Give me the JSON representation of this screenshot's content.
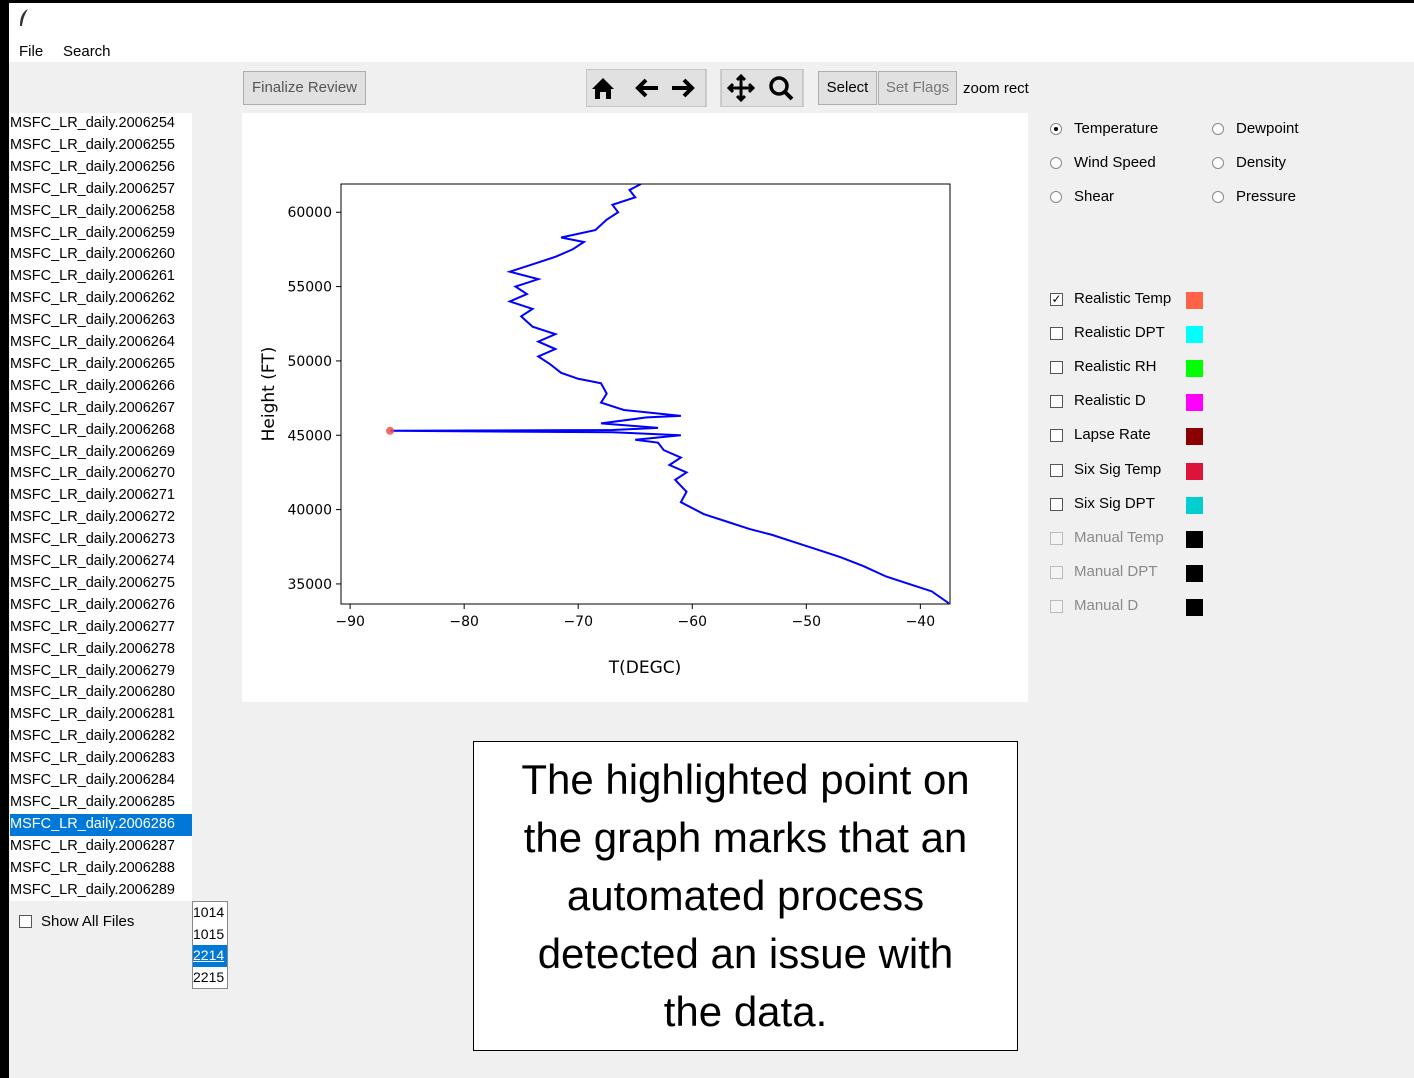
{
  "window": {
    "menu": [
      "File",
      "Search"
    ]
  },
  "toolbar": {
    "finalize": "Finalize Review",
    "select": "Select",
    "set_flags": "Set Flags",
    "mode": "zoom rect"
  },
  "file_list": {
    "items": [
      "MSFC_LR_daily.2006254",
      "MSFC_LR_daily.2006255",
      "MSFC_LR_daily.2006256",
      "MSFC_LR_daily.2006257",
      "MSFC_LR_daily.2006258",
      "MSFC_LR_daily.2006259",
      "MSFC_LR_daily.2006260",
      "MSFC_LR_daily.2006261",
      "MSFC_LR_daily.2006262",
      "MSFC_LR_daily.2006263",
      "MSFC_LR_daily.2006264",
      "MSFC_LR_daily.2006265",
      "MSFC_LR_daily.2006266",
      "MSFC_LR_daily.2006267",
      "MSFC_LR_daily.2006268",
      "MSFC_LR_daily.2006269",
      "MSFC_LR_daily.2006270",
      "MSFC_LR_daily.2006271",
      "MSFC_LR_daily.2006272",
      "MSFC_LR_daily.2006273",
      "MSFC_LR_daily.2006274",
      "MSFC_LR_daily.2006275",
      "MSFC_LR_daily.2006276",
      "MSFC_LR_daily.2006277",
      "MSFC_LR_daily.2006278",
      "MSFC_LR_daily.2006279",
      "MSFC_LR_daily.2006280",
      "MSFC_LR_daily.2006281",
      "MSFC_LR_daily.2006282",
      "MSFC_LR_daily.2006283",
      "MSFC_LR_daily.2006284",
      "MSFC_LR_daily.2006285",
      "MSFC_LR_daily.2006286",
      "MSFC_LR_daily.2006287",
      "MSFC_LR_daily.2006288",
      "MSFC_LR_daily.2006289"
    ],
    "selected": 32,
    "show_all": {
      "label": "Show All Files",
      "checked": false
    }
  },
  "time_list": {
    "items": [
      "1014",
      "1015",
      "2214",
      "2215"
    ],
    "selected": 2
  },
  "variables": {
    "options": [
      "Temperature",
      "Dewpoint",
      "Wind Speed",
      "Density",
      "Shear",
      "Pressure"
    ],
    "selected": 0
  },
  "flags": [
    {
      "label": "Realistic Temp",
      "color": "#ff6347",
      "checked": true,
      "enabled": true
    },
    {
      "label": "Realistic DPT",
      "color": "#00ffff",
      "checked": false,
      "enabled": true
    },
    {
      "label": "Realistic RH",
      "color": "#00ff00",
      "checked": false,
      "enabled": true
    },
    {
      "label": "Realistic D",
      "color": "#ff00ff",
      "checked": false,
      "enabled": true
    },
    {
      "label": "Lapse Rate",
      "color": "#8b0000",
      "checked": false,
      "enabled": true
    },
    {
      "label": "Six Sig Temp",
      "color": "#dc143c",
      "checked": false,
      "enabled": true
    },
    {
      "label": "Six Sig DPT",
      "color": "#00ced1",
      "checked": false,
      "enabled": true
    },
    {
      "label": "Manual Temp",
      "color": "#000000",
      "checked": false,
      "enabled": false
    },
    {
      "label": "Manual DPT",
      "color": "#000000",
      "checked": false,
      "enabled": false
    },
    {
      "label": "Manual D",
      "color": "#000000",
      "checked": false,
      "enabled": false
    }
  ],
  "note": "The highlighted point on the graph marks that an automated process detected an issue with the data.",
  "chart_data": {
    "type": "line",
    "xlabel": "T(DEGC)",
    "ylabel": "Height (FT)",
    "series": [
      {
        "color": "#0000ff",
        "x": [
          -37.5,
          -39,
          -41,
          -43,
          -45,
          -47,
          -49,
          -51,
          -53,
          -55,
          -57,
          -59,
          -61,
          -60.5,
          -61.5,
          -60.5,
          -62,
          -61,
          -62.5,
          -63,
          -65,
          -61,
          -67,
          -86.5,
          -67,
          -63,
          -68,
          -64,
          -61,
          -66,
          -68,
          -67.5,
          -68,
          -70,
          -71.5,
          -72.5,
          -73.5,
          -72,
          -73.5,
          -72,
          -74,
          -75,
          -74,
          -76,
          -74.5,
          -75.5,
          -73.5,
          -76,
          -74,
          -72,
          -70.5,
          -69.5,
          -71.5,
          -68.5,
          -67.5,
          -66.5,
          -67,
          -65,
          -65.5,
          -64.5
        ],
        "values": [
          33700,
          34500,
          35000,
          35500,
          36200,
          36800,
          37300,
          37800,
          38300,
          38700,
          39200,
          39700,
          40500,
          41200,
          42000,
          42500,
          43000,
          43500,
          44000,
          44500,
          44700,
          45000,
          45200,
          45300,
          45350,
          45500,
          45800,
          46200,
          46300,
          46700,
          47200,
          47800,
          48500,
          48800,
          49200,
          49800,
          50300,
          50800,
          51300,
          51800,
          52300,
          53000,
          53500,
          54000,
          54500,
          55000,
          55500,
          56000,
          56500,
          57000,
          57500,
          58000,
          58300,
          58800,
          59500,
          60000,
          60500,
          61000,
          61500,
          61900
        ]
      }
    ],
    "highlight": {
      "x": -86.5,
      "y": 45300,
      "color": "#f05050"
    },
    "xlim": [
      -90.8,
      -37.4
    ],
    "ylim": [
      33650,
      61900
    ],
    "xticks": [
      {
        "value": -90,
        "label": "−90"
      },
      {
        "value": -80,
        "label": "−80"
      },
      {
        "value": -70,
        "label": "−70"
      },
      {
        "value": -60,
        "label": "−60"
      },
      {
        "value": -50,
        "label": "−50"
      },
      {
        "value": -40,
        "label": "−40"
      }
    ],
    "yticks": [
      35000,
      40000,
      45000,
      50000,
      55000,
      60000
    ]
  }
}
